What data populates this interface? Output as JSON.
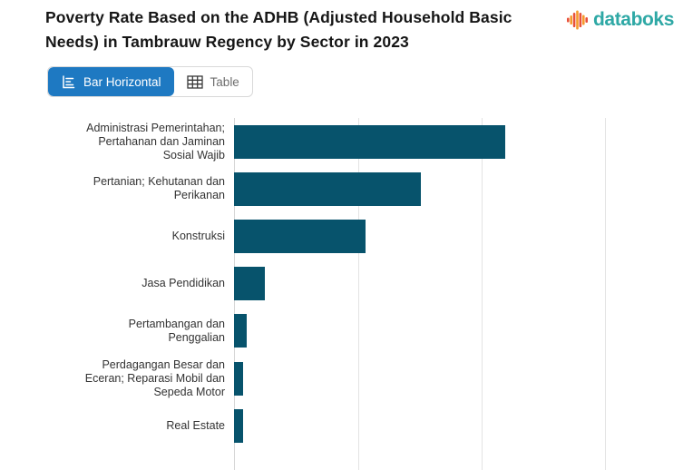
{
  "header": {
    "title": "Poverty Rate Based on the ADHB (Adjusted Household Basic Needs) in Tambrauw Regency by Sector in 2023",
    "brand": {
      "name": "databoks",
      "wordmark_color": "#2EA8A5",
      "icon_bar_colors": [
        "#E8503A",
        "#F59B2C"
      ]
    }
  },
  "toolbar": {
    "buttons": [
      {
        "label": "Bar Horizontal",
        "active": true
      },
      {
        "label": "Table",
        "active": false
      }
    ],
    "active_bg": "#1E79C2",
    "inactive_text_color": "#6e6e6e"
  },
  "chart_data": {
    "type": "bar",
    "orientation": "horizontal",
    "title": "Poverty Rate Based on the ADHB (Adjusted Household Basic Needs) in Tambrauw Regency by Sector in 2023",
    "categories": [
      "Administrasi Pemerintahan; Pertahanan dan Jaminan Sosial Wajib",
      "Pertanian; Kehutanan dan Perikanan",
      "Konstruksi",
      "Jasa Pendidikan",
      "Pertambangan dan Penggalian",
      "Perdagangan Besar dan Eceran; Reparasi Mobil dan Sepeda Motor",
      "Real Estate"
    ],
    "label_lines": [
      [
        "Administrasi Pemerintahan;",
        "Pertahanan dan Jaminan",
        "Sosial Wajib"
      ],
      [
        "Pertanian; Kehutanan dan",
        "Perikanan"
      ],
      [
        "Konstruksi"
      ],
      [
        "Jasa Pendidikan"
      ],
      [
        "Pertambangan dan",
        "Penggalian"
      ],
      [
        "Perdagangan Besar dan",
        "Eceran; Reparasi Mobil dan",
        "Sepeda Motor"
      ],
      [
        "Real Estate"
      ]
    ],
    "values": [
      21.9,
      15.1,
      10.6,
      2.5,
      1.0,
      0.75,
      0.7
    ],
    "xlim": [
      0,
      36.3
    ],
    "grid": {
      "interval": 10,
      "color": "#e3e3e3",
      "axis_line_color": "#d6d6d6"
    },
    "bar_color": "#07536C",
    "legend": "none",
    "x_axis_tick_labels_visible": false
  }
}
